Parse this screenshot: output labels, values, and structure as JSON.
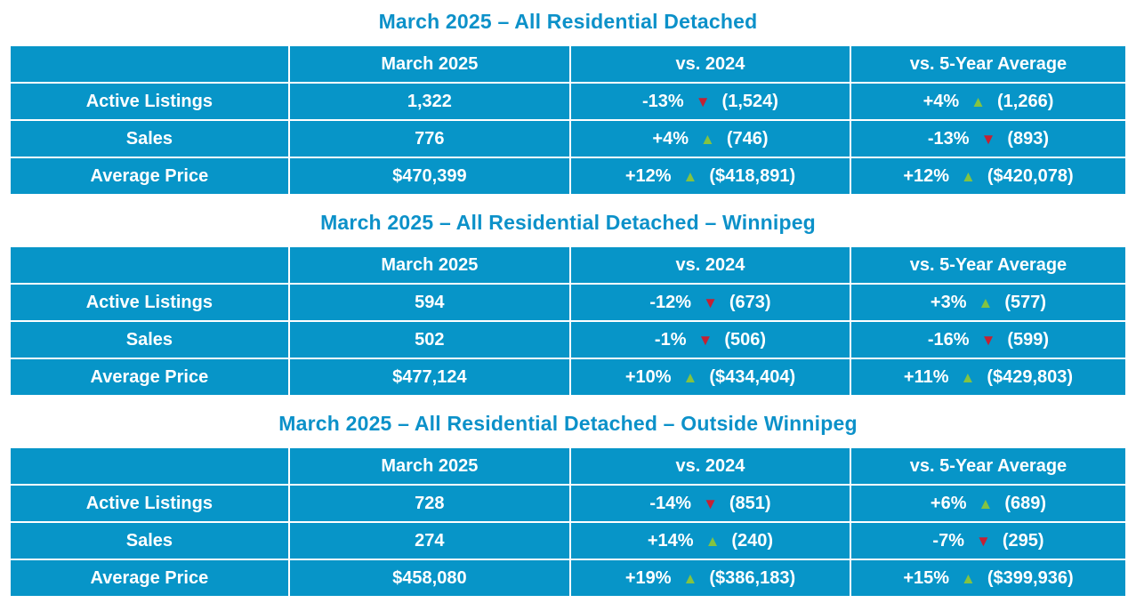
{
  "colors": {
    "table_bg": "#0795C8",
    "title_text": "#0C91C9",
    "cell_text": "#FFFFFF",
    "up_arrow": "#84C341",
    "down_arrow": "#C42133",
    "divider": "#FFFFFF"
  },
  "chart_data": [
    {
      "type": "table",
      "title": "March 2025 – All Residential Detached",
      "columns": [
        "",
        "March 2025",
        "vs. 2024",
        "vs. 5-Year Average"
      ],
      "rows": [
        {
          "label": "Active Listings",
          "current": "1,322",
          "vs_2024": {
            "pct": "-13%",
            "direction": "down",
            "prior": "(1,524)"
          },
          "vs_5yr": {
            "pct": "+4%",
            "direction": "up",
            "prior": "(1,266)"
          }
        },
        {
          "label": "Sales",
          "current": "776",
          "vs_2024": {
            "pct": "+4%",
            "direction": "up",
            "prior": "(746)"
          },
          "vs_5yr": {
            "pct": "-13%",
            "direction": "down",
            "prior": "(893)"
          }
        },
        {
          "label": "Average Price",
          "current": "$470,399",
          "vs_2024": {
            "pct": "+12%",
            "direction": "up",
            "prior": "($418,891)"
          },
          "vs_5yr": {
            "pct": "+12%",
            "direction": "up",
            "prior": "($420,078)"
          }
        }
      ]
    },
    {
      "type": "table",
      "title": "March 2025 – All Residential Detached – Winnipeg",
      "columns": [
        "",
        "March 2025",
        "vs. 2024",
        "vs. 5-Year Average"
      ],
      "rows": [
        {
          "label": "Active Listings",
          "current": "594",
          "vs_2024": {
            "pct": "-12%",
            "direction": "down",
            "prior": "(673)"
          },
          "vs_5yr": {
            "pct": "+3%",
            "direction": "up",
            "prior": "(577)"
          }
        },
        {
          "label": "Sales",
          "current": "502",
          "vs_2024": {
            "pct": "-1%",
            "direction": "down",
            "prior": "(506)"
          },
          "vs_5yr": {
            "pct": "-16%",
            "direction": "down",
            "prior": "(599)"
          }
        },
        {
          "label": "Average Price",
          "current": "$477,124",
          "vs_2024": {
            "pct": "+10%",
            "direction": "up",
            "prior": "($434,404)"
          },
          "vs_5yr": {
            "pct": "+11%",
            "direction": "up",
            "prior": "($429,803)"
          }
        }
      ]
    },
    {
      "type": "table",
      "title": "March 2025 – All Residential Detached – Outside Winnipeg",
      "columns": [
        "",
        "March 2025",
        "vs. 2024",
        "vs. 5-Year Average"
      ],
      "rows": [
        {
          "label": "Active Listings",
          "current": "728",
          "vs_2024": {
            "pct": "-14%",
            "direction": "down",
            "prior": "(851)"
          },
          "vs_5yr": {
            "pct": "+6%",
            "direction": "up",
            "prior": "(689)"
          }
        },
        {
          "label": "Sales",
          "current": "274",
          "vs_2024": {
            "pct": "+14%",
            "direction": "up",
            "prior": "(240)"
          },
          "vs_5yr": {
            "pct": "-7%",
            "direction": "down",
            "prior": "(295)"
          }
        },
        {
          "label": "Average Price",
          "current": "$458,080",
          "vs_2024": {
            "pct": "+19%",
            "direction": "up",
            "prior": "($386,183)"
          },
          "vs_5yr": {
            "pct": "+15%",
            "direction": "up",
            "prior": "($399,936)"
          }
        }
      ]
    }
  ]
}
